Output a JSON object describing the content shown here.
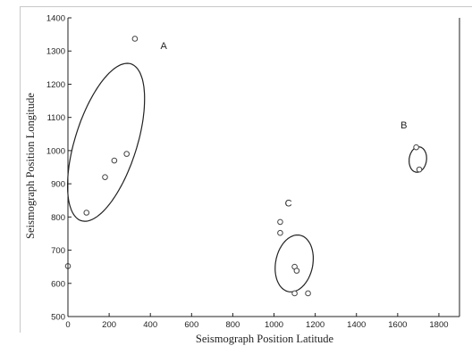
{
  "chart_data": {
    "type": "scatter",
    "title": "",
    "xlabel": "Seismograph Position Latitude",
    "ylabel": "Seismograph Position Longitude",
    "xlim": [
      0,
      1900
    ],
    "ylim": [
      500,
      1400
    ],
    "xticks": [
      0,
      200,
      400,
      600,
      800,
      1000,
      1200,
      1400,
      1600,
      1800
    ],
    "yticks": [
      500,
      600,
      700,
      800,
      900,
      1000,
      1100,
      1200,
      1300,
      1400
    ],
    "grid": false,
    "points": [
      {
        "x": 0,
        "y": 652
      },
      {
        "x": 90,
        "y": 813
      },
      {
        "x": 180,
        "y": 920
      },
      {
        "x": 225,
        "y": 970
      },
      {
        "x": 285,
        "y": 990
      },
      {
        "x": 325,
        "y": 1337
      },
      {
        "x": 1030,
        "y": 785
      },
      {
        "x": 1030,
        "y": 752
      },
      {
        "x": 1100,
        "y": 650
      },
      {
        "x": 1110,
        "y": 638
      },
      {
        "x": 1100,
        "y": 570
      },
      {
        "x": 1165,
        "y": 570
      },
      {
        "x": 1690,
        "y": 1010
      },
      {
        "x": 1705,
        "y": 943
      }
    ],
    "clusters": [
      {
        "label": "A",
        "center": [
          185,
          1025
        ],
        "semi_major": 400,
        "semi_minor": 150,
        "angle_deg": 63
      },
      {
        "label": "B",
        "center": [
          1698,
          973
        ],
        "semi_major": 62,
        "semi_minor": 42,
        "angle_deg": 78
      },
      {
        "label": "C",
        "center": [
          1098,
          660
        ],
        "semi_major": 140,
        "semi_minor": 90,
        "angle_deg": 72
      }
    ],
    "cluster_labels": [
      {
        "text": "A",
        "x": 465,
        "y": 1317
      },
      {
        "text": "B",
        "x": 1630,
        "y": 1077
      },
      {
        "text": "C",
        "x": 1070,
        "y": 843
      }
    ]
  }
}
